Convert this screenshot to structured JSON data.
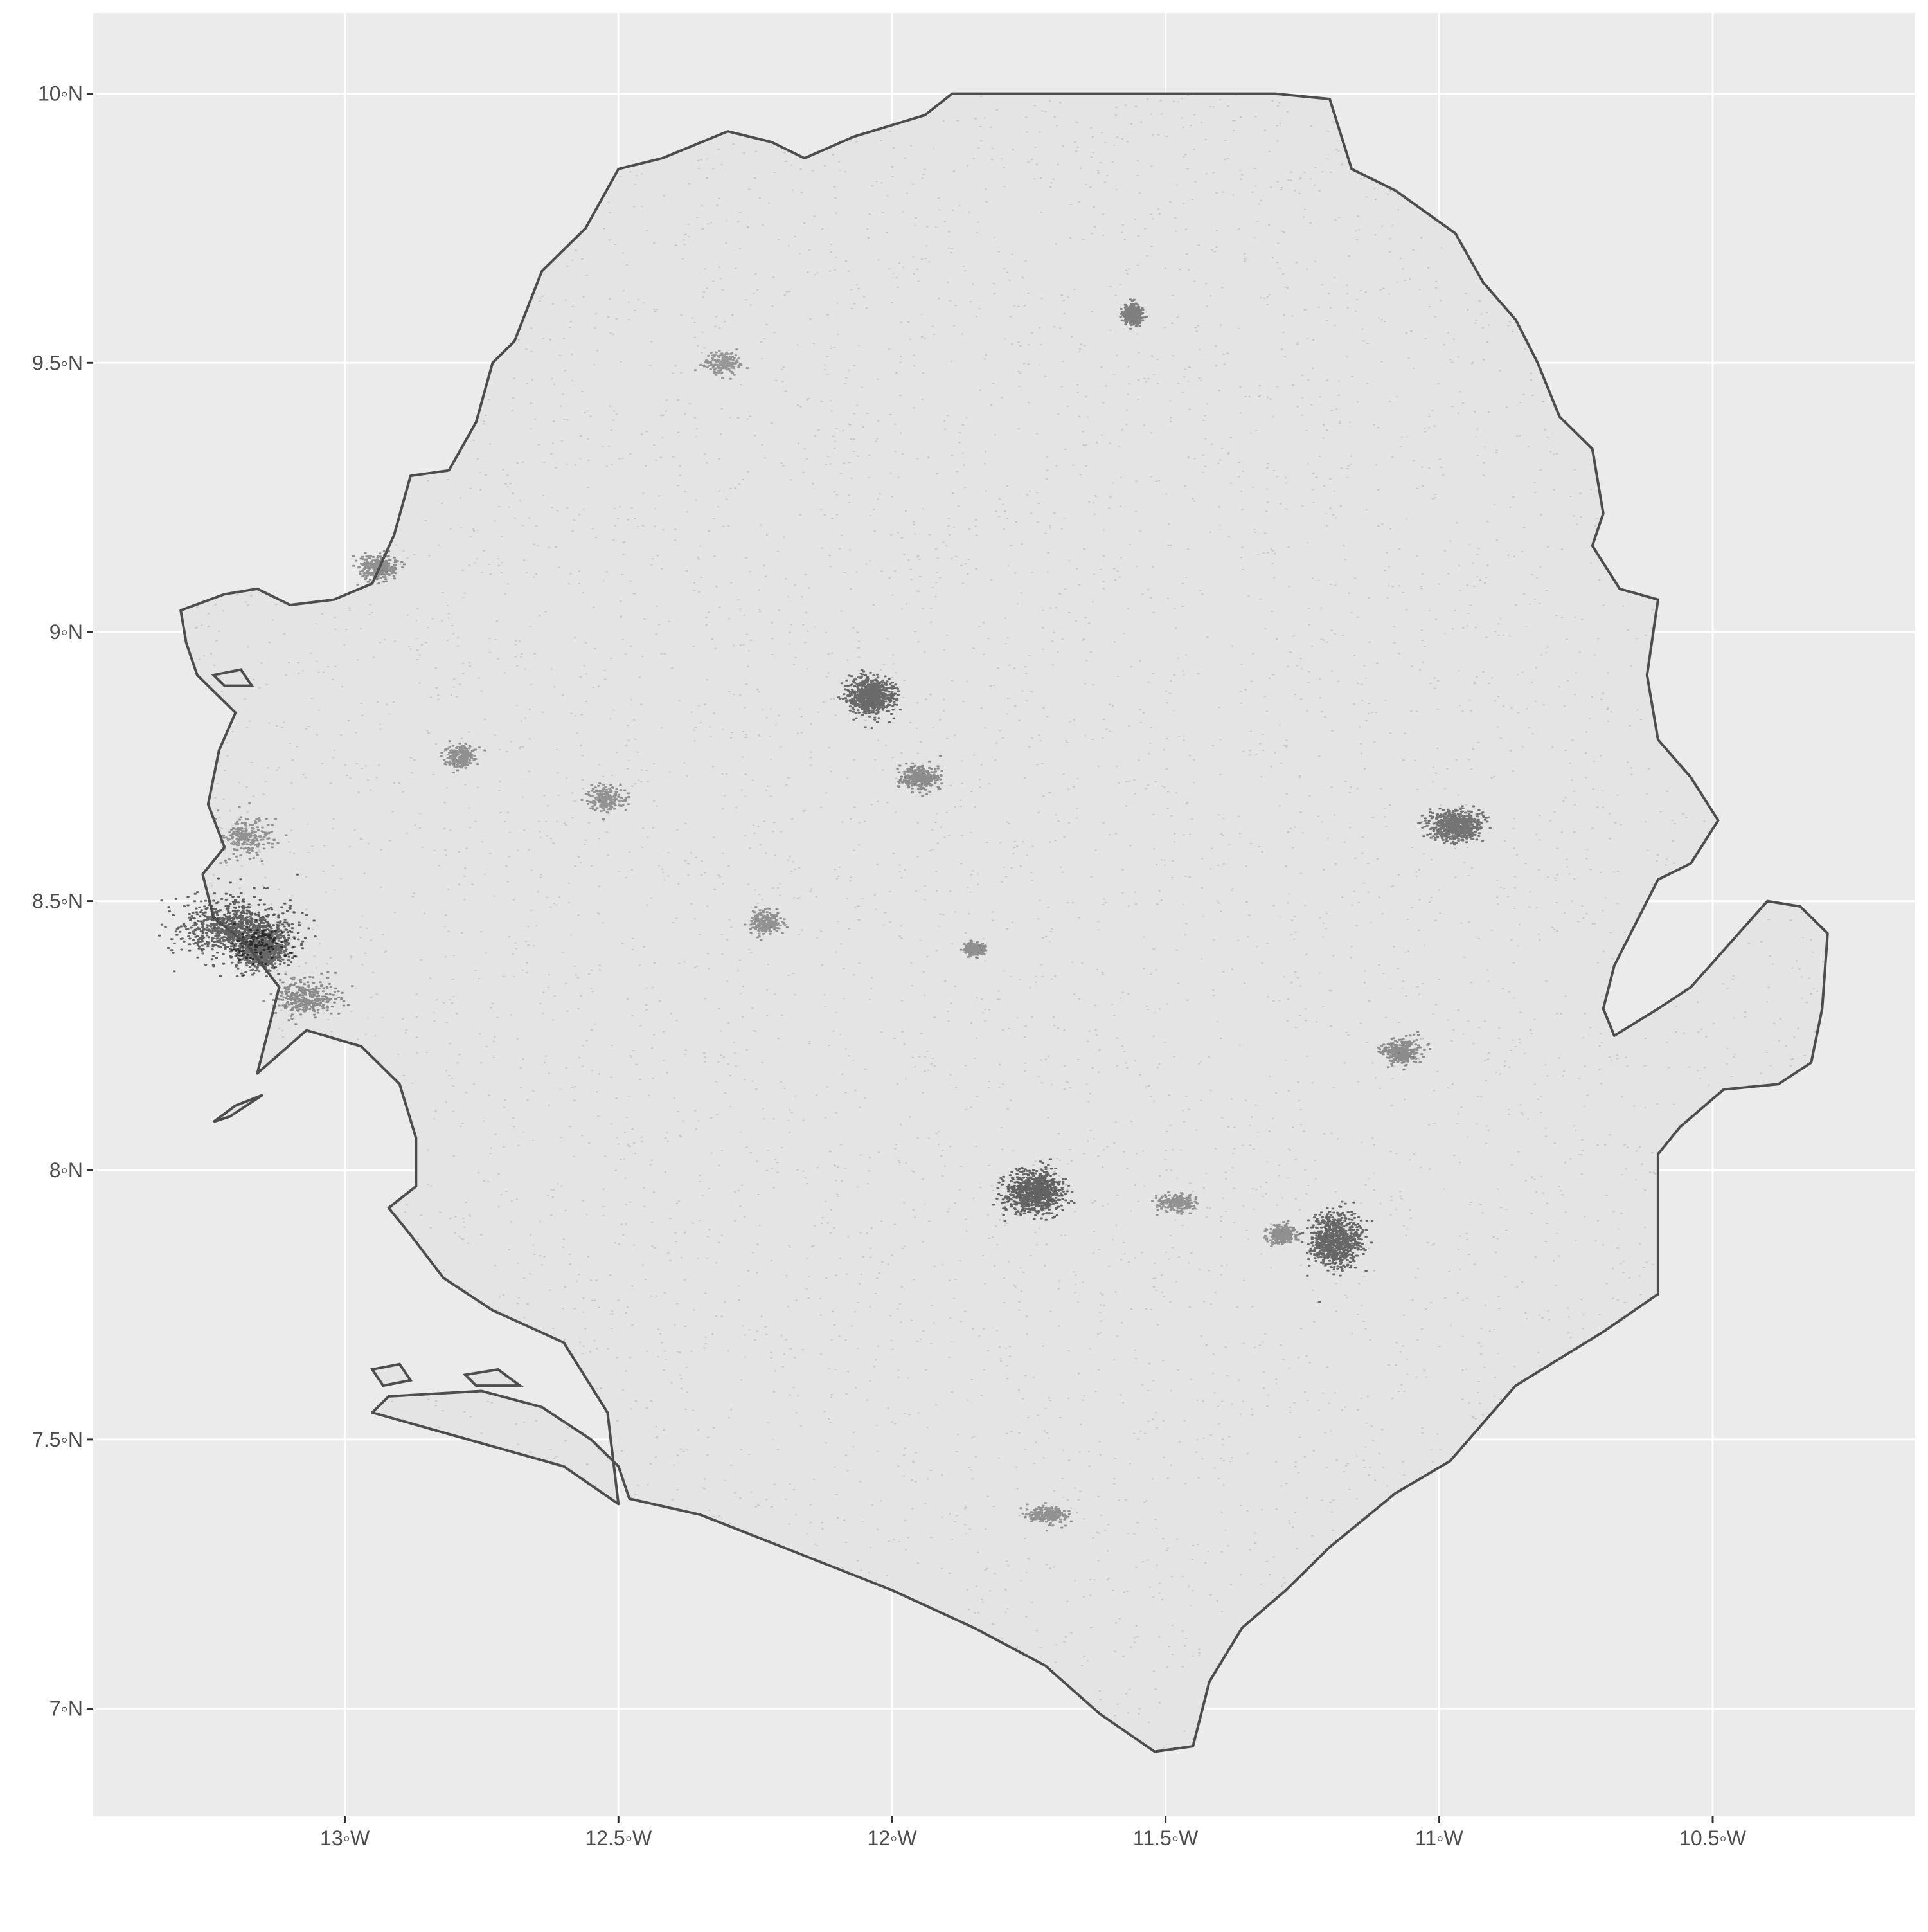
{
  "map": {
    "x_ticks": [
      {
        "value": -13.0,
        "label": "13◦W"
      },
      {
        "value": -12.5,
        "label": "12.5◦W"
      },
      {
        "value": -12.0,
        "label": "12◦W"
      },
      {
        "value": -11.5,
        "label": "11.5◦W"
      },
      {
        "value": -11.0,
        "label": "11◦W"
      },
      {
        "value": -10.5,
        "label": "10.5◦W"
      }
    ],
    "y_ticks": [
      {
        "value": 10.0,
        "label": "10◦N"
      },
      {
        "value": 9.5,
        "label": "9.5◦N"
      },
      {
        "value": 9.0,
        "label": "9◦N"
      },
      {
        "value": 8.5,
        "label": "8.5◦N"
      },
      {
        "value": 8.0,
        "label": "8◦N"
      },
      {
        "value": 7.5,
        "label": "7.5◦N"
      },
      {
        "value": 7.0,
        "label": "7◦N"
      }
    ],
    "xlim": [
      -13.46,
      -10.13
    ],
    "ylim": [
      6.8,
      10.15
    ],
    "colors": {
      "panel": "#ebebeb",
      "grid": "#ffffff",
      "land": "#e4e4e4",
      "border": "#4d4d4d",
      "points": "#000000",
      "axis_text": "#4d4d4d"
    },
    "border": [
      [
        -13.3,
        9.04
      ],
      [
        -13.22,
        9.07
      ],
      [
        -13.16,
        9.08
      ],
      [
        -13.1,
        9.05
      ],
      [
        -13.02,
        9.06
      ],
      [
        -12.95,
        9.09
      ],
      [
        -12.91,
        9.18
      ],
      [
        -12.88,
        9.29
      ],
      [
        -12.81,
        9.3
      ],
      [
        -12.76,
        9.39
      ],
      [
        -12.73,
        9.5
      ],
      [
        -12.69,
        9.54
      ],
      [
        -12.64,
        9.67
      ],
      [
        -12.56,
        9.75
      ],
      [
        -12.5,
        9.86
      ],
      [
        -12.42,
        9.88
      ],
      [
        -12.3,
        9.93
      ],
      [
        -12.22,
        9.91
      ],
      [
        -12.16,
        9.88
      ],
      [
        -12.07,
        9.92
      ],
      [
        -11.94,
        9.96
      ],
      [
        -11.89,
        10.0
      ],
      [
        -11.55,
        10.0
      ],
      [
        -11.3,
        10.0
      ],
      [
        -11.2,
        9.99
      ],
      [
        -11.16,
        9.86
      ],
      [
        -11.08,
        9.82
      ],
      [
        -10.97,
        9.74
      ],
      [
        -10.92,
        9.65
      ],
      [
        -10.86,
        9.58
      ],
      [
        -10.82,
        9.5
      ],
      [
        -10.78,
        9.4
      ],
      [
        -10.72,
        9.34
      ],
      [
        -10.7,
        9.22
      ],
      [
        -10.72,
        9.16
      ],
      [
        -10.67,
        9.08
      ],
      [
        -10.6,
        9.06
      ],
      [
        -10.62,
        8.92
      ],
      [
        -10.6,
        8.8
      ],
      [
        -10.54,
        8.73
      ],
      [
        -10.49,
        8.65
      ],
      [
        -10.54,
        8.57
      ],
      [
        -10.6,
        8.54
      ],
      [
        -10.64,
        8.46
      ],
      [
        -10.68,
        8.38
      ],
      [
        -10.7,
        8.3
      ],
      [
        -10.68,
        8.25
      ],
      [
        -10.6,
        8.3
      ],
      [
        -10.54,
        8.34
      ],
      [
        -10.4,
        8.5
      ],
      [
        -10.34,
        8.49
      ],
      [
        -10.29,
        8.44
      ],
      [
        -10.3,
        8.3
      ],
      [
        -10.32,
        8.2
      ],
      [
        -10.38,
        8.16
      ],
      [
        -10.48,
        8.15
      ],
      [
        -10.56,
        8.08
      ],
      [
        -10.6,
        8.03
      ],
      [
        -10.6,
        7.77
      ],
      [
        -10.7,
        7.7
      ],
      [
        -10.86,
        7.6
      ],
      [
        -10.98,
        7.46
      ],
      [
        -11.08,
        7.4
      ],
      [
        -11.2,
        7.3
      ],
      [
        -11.28,
        7.22
      ],
      [
        -11.36,
        7.15
      ],
      [
        -11.42,
        7.05
      ],
      [
        -11.45,
        6.93
      ],
      [
        -11.52,
        6.92
      ],
      [
        -11.62,
        6.99
      ],
      [
        -11.72,
        7.08
      ],
      [
        -11.85,
        7.15
      ],
      [
        -12.0,
        7.22
      ],
      [
        -12.2,
        7.3
      ],
      [
        -12.35,
        7.36
      ],
      [
        -12.48,
        7.39
      ],
      [
        -12.5,
        7.45
      ],
      [
        -12.55,
        7.5
      ],
      [
        -12.64,
        7.56
      ],
      [
        -12.75,
        7.59
      ],
      [
        -12.92,
        7.58
      ],
      [
        -12.95,
        7.55
      ],
      [
        -12.6,
        7.45
      ],
      [
        -12.5,
        7.38
      ],
      [
        -12.52,
        7.55
      ],
      [
        -12.6,
        7.68
      ],
      [
        -12.73,
        7.74
      ],
      [
        -12.82,
        7.8
      ],
      [
        -12.88,
        7.88
      ],
      [
        -12.92,
        7.93
      ],
      [
        -12.87,
        7.97
      ],
      [
        -12.87,
        8.06
      ],
      [
        -12.9,
        8.16
      ],
      [
        -12.97,
        8.23
      ],
      [
        -13.07,
        8.26
      ],
      [
        -13.16,
        8.18
      ],
      [
        -13.12,
        8.34
      ],
      [
        -13.18,
        8.42
      ],
      [
        -13.24,
        8.47
      ],
      [
        -13.26,
        8.55
      ],
      [
        -13.22,
        8.6
      ],
      [
        -13.25,
        8.68
      ],
      [
        -13.23,
        8.78
      ],
      [
        -13.2,
        8.85
      ],
      [
        -13.27,
        8.92
      ],
      [
        -13.29,
        8.98
      ],
      [
        -13.3,
        9.04
      ]
    ],
    "islands": [
      [
        [
          -12.78,
          7.62
        ],
        [
          -12.72,
          7.63
        ],
        [
          -12.68,
          7.6
        ],
        [
          -12.76,
          7.6
        ],
        [
          -12.78,
          7.62
        ]
      ],
      [
        [
          -13.2,
          8.12
        ],
        [
          -13.15,
          8.14
        ],
        [
          -13.21,
          8.1
        ],
        [
          -13.24,
          8.09
        ],
        [
          -13.2,
          8.12
        ]
      ],
      [
        [
          -13.24,
          8.92
        ],
        [
          -13.19,
          8.93
        ],
        [
          -13.17,
          8.9
        ],
        [
          -13.22,
          8.9
        ],
        [
          -13.24,
          8.92
        ]
      ],
      [
        [
          -12.95,
          7.63
        ],
        [
          -12.9,
          7.64
        ],
        [
          -12.88,
          7.61
        ],
        [
          -12.93,
          7.6
        ],
        [
          -12.95,
          7.63
        ]
      ]
    ],
    "dense_clusters": [
      {
        "lon": -13.2,
        "lat": 8.45,
        "rx": 0.09,
        "ry": 0.05,
        "strength": 1.0
      },
      {
        "lon": -13.15,
        "lat": 8.41,
        "rx": 0.04,
        "ry": 0.03,
        "strength": 0.9
      },
      {
        "lon": -13.07,
        "lat": 8.32,
        "rx": 0.05,
        "ry": 0.03,
        "strength": 0.35
      },
      {
        "lon": -12.04,
        "lat": 8.88,
        "rx": 0.035,
        "ry": 0.03,
        "strength": 0.85
      },
      {
        "lon": -11.74,
        "lat": 7.96,
        "rx": 0.045,
        "ry": 0.035,
        "strength": 0.95
      },
      {
        "lon": -11.19,
        "lat": 7.87,
        "rx": 0.04,
        "ry": 0.045,
        "strength": 0.9
      },
      {
        "lon": -10.97,
        "lat": 8.64,
        "rx": 0.04,
        "ry": 0.025,
        "strength": 0.7
      },
      {
        "lon": -11.56,
        "lat": 9.59,
        "rx": 0.015,
        "ry": 0.015,
        "strength": 0.55
      },
      {
        "lon": -11.95,
        "lat": 8.73,
        "rx": 0.03,
        "ry": 0.02,
        "strength": 0.35
      },
      {
        "lon": -12.94,
        "lat": 9.12,
        "rx": 0.03,
        "ry": 0.02,
        "strength": 0.35
      },
      {
        "lon": -12.79,
        "lat": 8.77,
        "rx": 0.025,
        "ry": 0.02,
        "strength": 0.3
      },
      {
        "lon": -13.18,
        "lat": 8.62,
        "rx": 0.04,
        "ry": 0.03,
        "strength": 0.25
      },
      {
        "lon": -11.07,
        "lat": 8.22,
        "rx": 0.03,
        "ry": 0.02,
        "strength": 0.35
      },
      {
        "lon": -12.23,
        "lat": 8.46,
        "rx": 0.025,
        "ry": 0.02,
        "strength": 0.25
      },
      {
        "lon": -12.52,
        "lat": 8.69,
        "rx": 0.03,
        "ry": 0.02,
        "strength": 0.25
      },
      {
        "lon": -11.72,
        "lat": 7.36,
        "rx": 0.03,
        "ry": 0.015,
        "strength": 0.25
      },
      {
        "lon": -11.85,
        "lat": 8.41,
        "rx": 0.015,
        "ry": 0.01,
        "strength": 0.3
      },
      {
        "lon": -11.29,
        "lat": 7.88,
        "rx": 0.02,
        "ry": 0.015,
        "strength": 0.3
      },
      {
        "lon": -11.48,
        "lat": 7.94,
        "rx": 0.03,
        "ry": 0.015,
        "strength": 0.25
      },
      {
        "lon": -12.31,
        "lat": 9.5,
        "rx": 0.03,
        "ry": 0.02,
        "strength": 0.2
      }
    ]
  }
}
